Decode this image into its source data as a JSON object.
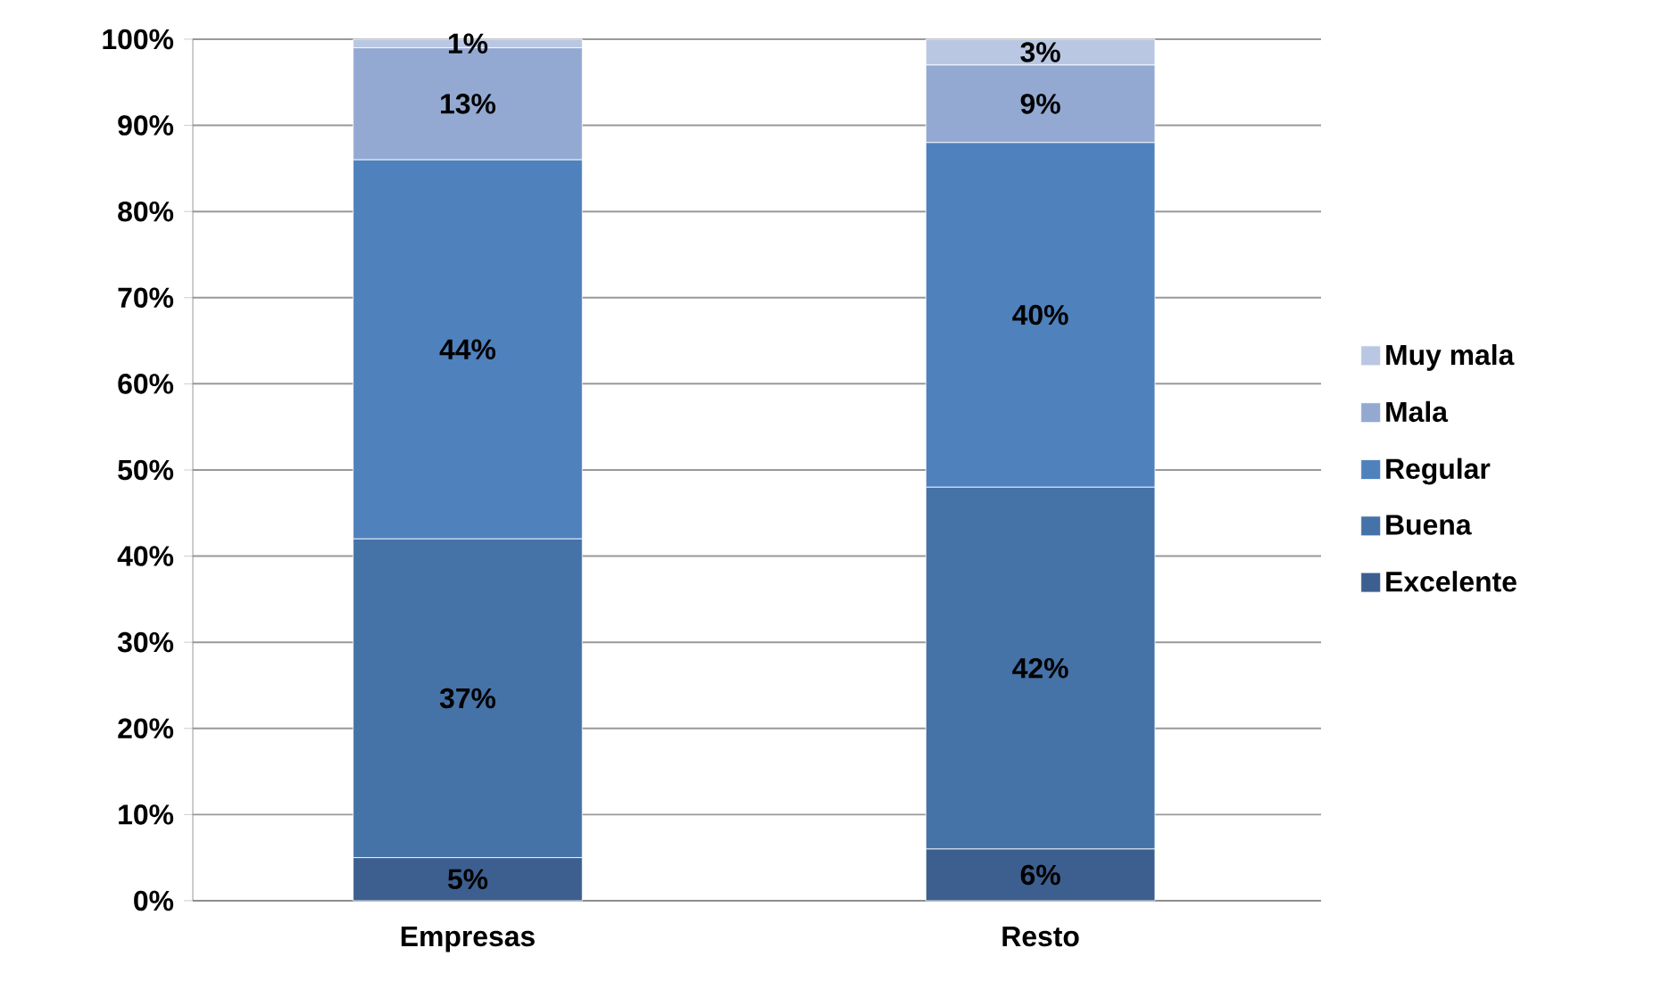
{
  "chart_data": {
    "type": "bar",
    "stacked": true,
    "categories": [
      "Empresas",
      "Resto"
    ],
    "series": [
      {
        "name": "Excelente",
        "color": "#3c5f8f",
        "values": [
          5,
          6
        ],
        "value_labels": [
          "5%",
          "6%"
        ]
      },
      {
        "name": "Buena",
        "color": "#4572a7",
        "values": [
          37,
          42
        ],
        "value_labels": [
          "37%",
          "42%"
        ]
      },
      {
        "name": "Regular",
        "color": "#4f81bd",
        "values": [
          44,
          40
        ],
        "value_labels": [
          "44%",
          "40%"
        ]
      },
      {
        "name": "Mala",
        "color": "#93a9d2",
        "values": [
          13,
          9
        ],
        "value_labels": [
          "13%",
          "9%"
        ]
      },
      {
        "name": "Muy mala",
        "color": "#b9c7e2",
        "values": [
          1,
          3
        ],
        "value_labels": [
          "1%",
          "3%"
        ]
      }
    ],
    "ylim": [
      0,
      100
    ],
    "yticks": [
      {
        "value": 0,
        "label": "0%"
      },
      {
        "value": 10,
        "label": "10%"
      },
      {
        "value": 20,
        "label": "20%"
      },
      {
        "value": 30,
        "label": "30%"
      },
      {
        "value": 40,
        "label": "40%"
      },
      {
        "value": 50,
        "label": "50%"
      },
      {
        "value": 60,
        "label": "60%"
      },
      {
        "value": 70,
        "label": "70%"
      },
      {
        "value": 80,
        "label": "80%"
      },
      {
        "value": 90,
        "label": "90%"
      },
      {
        "value": 100,
        "label": "100%"
      }
    ],
    "grid": "y",
    "legend": "right"
  }
}
